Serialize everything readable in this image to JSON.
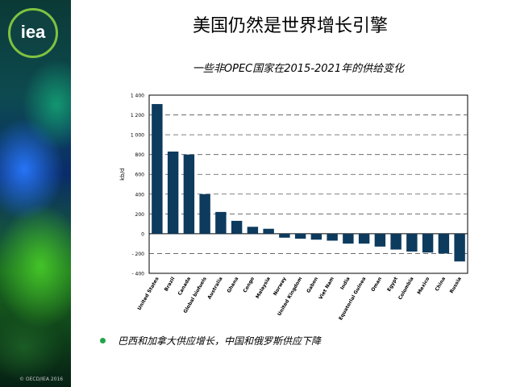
{
  "slide": {
    "title": "美国仍然是世界增长引擎",
    "bullet": "巴西和加拿大供应增长，中国和俄罗斯供应下降",
    "copyright": "© OECD/IEA 2016"
  },
  "logo": {
    "text": "iea",
    "icon": "iea-logo-icon",
    "ring_color": "#7fc241"
  },
  "colors": {
    "bar": "#0d3b5e",
    "bullet": "#21a54a"
  },
  "chart_data": {
    "type": "bar",
    "title": "一些非OPEC国家在2015-2021年的供给变化",
    "ylabel": "kb/d",
    "ylim": [
      -400,
      1400
    ],
    "yticks": [
      -400,
      -200,
      0,
      200,
      400,
      600,
      800,
      1000,
      1200,
      1400
    ],
    "ytick_labels": [
      "- 400",
      "- 200",
      "0",
      "200",
      "400",
      "600",
      "800",
      "1 000",
      "1 200",
      "1 400"
    ],
    "grid": "dashed horizontal",
    "categories": [
      "United States",
      "Brazil",
      "Canada",
      "Global biofuels",
      "Australia",
      "Ghana",
      "Congo",
      "Malaysia",
      "Norway",
      "United Kingdom",
      "Gabon",
      "Viet Nam",
      "India",
      "Equatorial Guinea",
      "Oman",
      "Egypt",
      "Colombia",
      "Mexico",
      "China",
      "Russia"
    ],
    "values": [
      1310,
      830,
      800,
      400,
      220,
      130,
      70,
      50,
      -40,
      -50,
      -60,
      -70,
      -100,
      -100,
      -130,
      -160,
      -180,
      -190,
      -200,
      -280
    ]
  }
}
